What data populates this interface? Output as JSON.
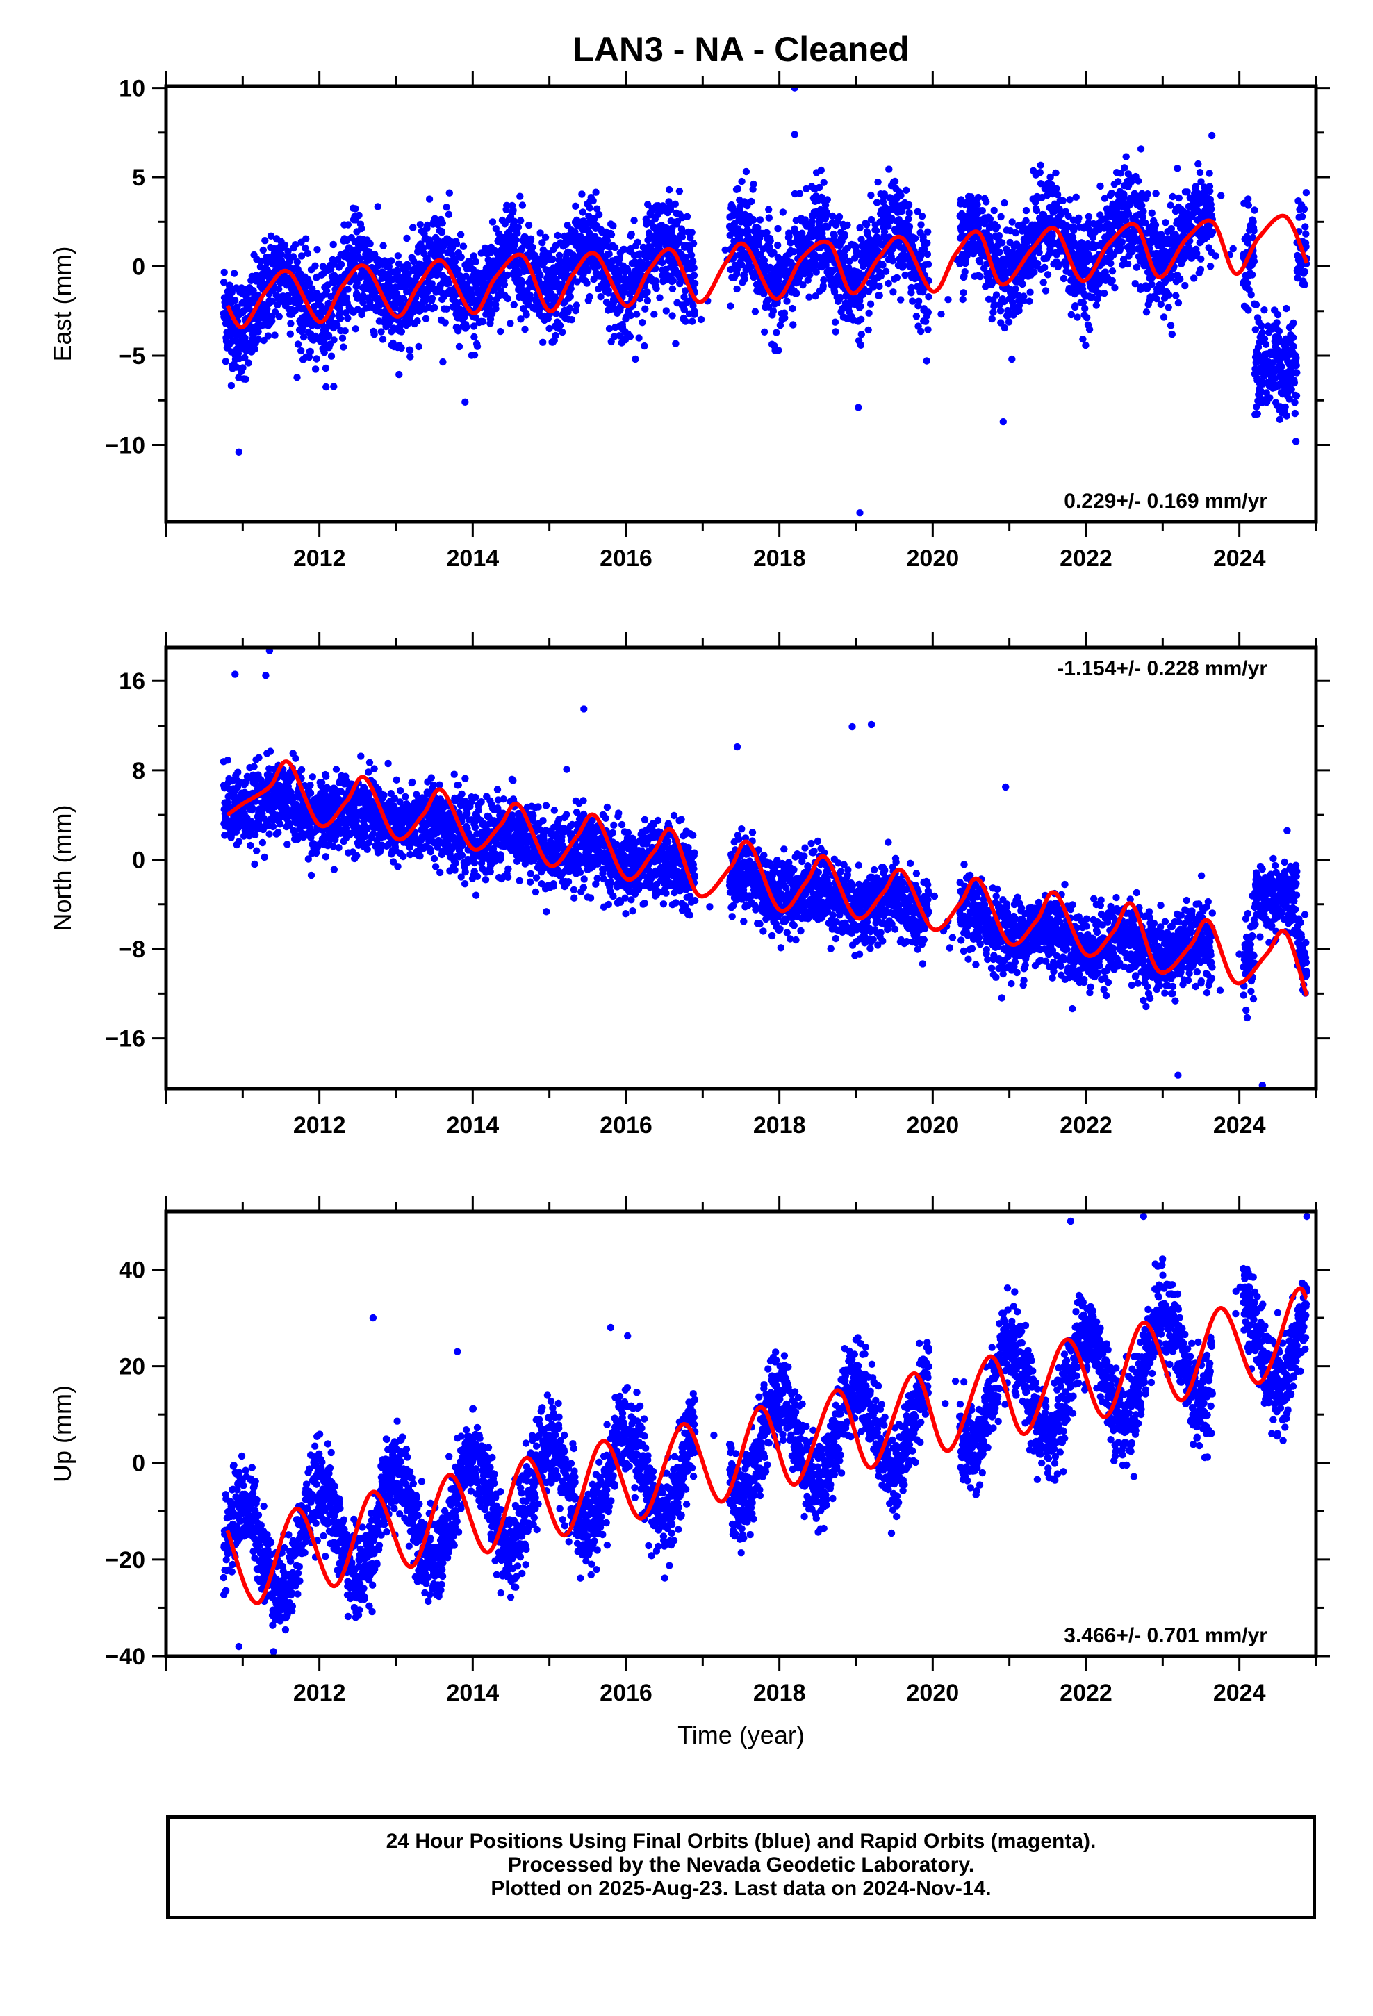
{
  "title": "LAN3  - NA - Cleaned",
  "footer": {
    "line1": "24 Hour Positions Using Final Orbits (blue) and Rapid Orbits (magenta).",
    "line2": "Processed by the Nevada Geodetic Laboratory.",
    "line3": "Plotted on 2025-Aug-23. Last data on 2024-Nov-14."
  },
  "colors": {
    "data_points": "#0000ff",
    "model_fit": "#ff0000",
    "frame": "#000000"
  },
  "chart_data": [
    {
      "type": "scatter",
      "ylabel": "East (mm)",
      "xlabel": "",
      "xlim": [
        2010.0,
        2025.0
      ],
      "ylim": [
        -14.3,
        10.1
      ],
      "xticks": [
        2012,
        2014,
        2016,
        2018,
        2020,
        2022,
        2024
      ],
      "yticks": [
        -10,
        -5,
        0,
        5,
        10
      ],
      "ytick_labels": [
        "−10",
        "−5",
        "0",
        "5",
        "10"
      ],
      "rate_label": "0.229+/- 0.169 mm/yr",
      "rate_position": "bottom-right",
      "data_range_x": [
        2010.75,
        2024.88
      ],
      "series": [
        {
          "role": "daily positions",
          "trend": [
            [
              2010.8,
              -2.2
            ],
            [
              2013.0,
              -1.0
            ],
            [
              2016.0,
              0.0
            ],
            [
              2018.0,
              0.3
            ],
            [
              2020.0,
              0.6
            ],
            [
              2022.0,
              1.2
            ],
            [
              2024.0,
              1.5
            ]
          ],
          "seasonal_amplitude": 1.4,
          "scatter": 1.4,
          "gaps": [
            [
              2016.9,
              2017.35
            ],
            [
              2019.95,
              2020.35
            ],
            [
              2023.65,
              2024.05
            ]
          ],
          "offset_segments": [
            {
              "x": [
                2024.2,
                2024.75
              ],
              "y": -5.5
            }
          ],
          "outliers": [
            [
              2018.2,
              10.0
            ],
            [
              2018.2,
              7.4
            ],
            [
              2019.05,
              -13.8
            ],
            [
              2010.95,
              -10.4
            ],
            [
              2020.92,
              -8.7
            ],
            [
              2013.9,
              -7.6
            ],
            [
              2019.03,
              -7.9
            ]
          ]
        },
        {
          "role": "model fit",
          "points": [
            [
              2010.8,
              -2.2
            ],
            [
              2011.0,
              -3.4
            ],
            [
              2011.3,
              -1.4
            ],
            [
              2011.6,
              -0.3
            ],
            [
              2012.0,
              -3.1
            ],
            [
              2012.3,
              -1.1
            ],
            [
              2012.6,
              0.0
            ],
            [
              2013.0,
              -2.8
            ],
            [
              2013.3,
              -1.0
            ],
            [
              2013.6,
              0.3
            ],
            [
              2014.0,
              -2.6
            ],
            [
              2014.3,
              -0.6
            ],
            [
              2014.65,
              0.6
            ],
            [
              2015.0,
              -2.5
            ],
            [
              2015.3,
              -0.5
            ],
            [
              2015.6,
              0.7
            ],
            [
              2016.0,
              -2.2
            ],
            [
              2016.3,
              -0.2
            ],
            [
              2016.6,
              0.9
            ],
            [
              2016.95,
              -2.0
            ],
            [
              2017.3,
              0.2
            ],
            [
              2017.55,
              1.2
            ],
            [
              2017.95,
              -1.8
            ],
            [
              2018.3,
              0.5
            ],
            [
              2018.65,
              1.3
            ],
            [
              2018.95,
              -1.5
            ],
            [
              2019.3,
              0.5
            ],
            [
              2019.6,
              1.6
            ],
            [
              2020.0,
              -1.4
            ],
            [
              2020.3,
              0.7
            ],
            [
              2020.6,
              1.9
            ],
            [
              2020.9,
              -1.0
            ],
            [
              2021.3,
              1.0
            ],
            [
              2021.6,
              2.1
            ],
            [
              2021.95,
              -0.8
            ],
            [
              2022.3,
              1.3
            ],
            [
              2022.65,
              2.3
            ],
            [
              2022.95,
              -0.6
            ],
            [
              2023.3,
              1.5
            ],
            [
              2023.65,
              2.5
            ],
            [
              2023.95,
              -0.4
            ],
            [
              2024.25,
              1.6
            ],
            [
              2024.6,
              2.8
            ],
            [
              2024.88,
              0.2
            ]
          ]
        }
      ]
    },
    {
      "type": "scatter",
      "ylabel": "North (mm)",
      "xlabel": "",
      "xlim": [
        2010.0,
        2025.0
      ],
      "ylim": [
        -20.5,
        19.0
      ],
      "xticks": [
        2012,
        2014,
        2016,
        2018,
        2020,
        2022,
        2024
      ],
      "yticks": [
        -16,
        -8,
        0,
        8,
        16
      ],
      "ytick_labels": [
        "−16",
        "−8",
        "0",
        "8",
        "16"
      ],
      "rate_label": "-1.154+/- 0.228 mm/yr",
      "rate_position": "top-right",
      "data_range_x": [
        2010.75,
        2024.88
      ],
      "series": [
        {
          "role": "daily positions",
          "trend": [
            [
              2010.8,
              5.5
            ],
            [
              2013.0,
              3.5
            ],
            [
              2016.0,
              0.0
            ],
            [
              2018.0,
              -2.5
            ],
            [
              2020.0,
              -5.0
            ],
            [
              2022.0,
              -7.5
            ],
            [
              2024.0,
              -8.5
            ]
          ],
          "seasonal_amplitude": 2.5,
          "scatter": 1.7,
          "gaps": [
            [
              2016.9,
              2017.35
            ],
            [
              2019.95,
              2020.35
            ],
            [
              2023.65,
              2024.05
            ]
          ],
          "offset_segments": [
            {
              "x": [
                2024.2,
                2024.75
              ],
              "y": -3.5
            }
          ],
          "outliers": [
            [
              2011.35,
              18.7
            ],
            [
              2010.9,
              16.6
            ],
            [
              2011.3,
              16.5
            ],
            [
              2015.45,
              13.5
            ],
            [
              2019.2,
              12.1
            ],
            [
              2018.95,
              11.9
            ],
            [
              2017.45,
              10.1
            ],
            [
              2023.2,
              -19.3
            ],
            [
              2024.3,
              -20.2
            ],
            [
              2020.95,
              6.5
            ]
          ]
        },
        {
          "role": "model fit",
          "points": [
            [
              2010.8,
              4.0
            ],
            [
              2011.0,
              5.0
            ],
            [
              2011.35,
              6.5
            ],
            [
              2011.6,
              8.7
            ],
            [
              2012.0,
              3.1
            ],
            [
              2012.35,
              5.2
            ],
            [
              2012.6,
              7.3
            ],
            [
              2013.0,
              1.9
            ],
            [
              2013.35,
              4.0
            ],
            [
              2013.6,
              6.2
            ],
            [
              2014.0,
              1.0
            ],
            [
              2014.35,
              3.0
            ],
            [
              2014.6,
              4.9
            ],
            [
              2015.0,
              -0.5
            ],
            [
              2015.35,
              2.0
            ],
            [
              2015.6,
              3.9
            ],
            [
              2016.0,
              -1.7
            ],
            [
              2016.35,
              0.6
            ],
            [
              2016.6,
              2.6
            ],
            [
              2016.95,
              -3.2
            ],
            [
              2017.35,
              -0.8
            ],
            [
              2017.6,
              1.5
            ],
            [
              2018.0,
              -4.5
            ],
            [
              2018.35,
              -2.0
            ],
            [
              2018.6,
              0.2
            ],
            [
              2019.0,
              -5.2
            ],
            [
              2019.35,
              -3.0
            ],
            [
              2019.6,
              -1.0
            ],
            [
              2020.0,
              -6.2
            ],
            [
              2020.35,
              -4.0
            ],
            [
              2020.6,
              -1.8
            ],
            [
              2021.0,
              -7.5
            ],
            [
              2021.35,
              -5.5
            ],
            [
              2021.6,
              -3.0
            ],
            [
              2022.0,
              -8.5
            ],
            [
              2022.35,
              -6.5
            ],
            [
              2022.6,
              -4.0
            ],
            [
              2022.95,
              -10.0
            ],
            [
              2023.35,
              -7.8
            ],
            [
              2023.6,
              -5.5
            ],
            [
              2023.95,
              -11.0
            ],
            [
              2024.35,
              -8.5
            ],
            [
              2024.6,
              -6.5
            ],
            [
              2024.88,
              -12.2
            ]
          ]
        }
      ]
    },
    {
      "type": "scatter",
      "ylabel": "Up (mm)",
      "xlabel": "Time (year)",
      "xlim": [
        2010.0,
        2025.0
      ],
      "ylim": [
        -40.0,
        52.0
      ],
      "xticks": [
        2012,
        2014,
        2016,
        2018,
        2020,
        2022,
        2024
      ],
      "yticks": [
        -40,
        -20,
        0,
        20,
        40
      ],
      "ytick_labels": [
        "−40",
        "−20",
        "0",
        "20",
        "40"
      ],
      "rate_label": "3.466+/- 0.701 mm/yr",
      "rate_position": "bottom-right",
      "data_range_x": [
        2010.75,
        2024.88
      ],
      "series": [
        {
          "role": "daily positions",
          "trend": [
            [
              2010.8,
              -19.0
            ],
            [
              2013.0,
              -12.0
            ],
            [
              2016.0,
              -3.0
            ],
            [
              2018.0,
              4.0
            ],
            [
              2020.0,
              10.0
            ],
            [
              2022.0,
              17.0
            ],
            [
              2024.0,
              25.0
            ]
          ],
          "seasonal_amplitude": 10.0,
          "scatter": 4.5,
          "gaps": [
            [
              2016.9,
              2017.35
            ],
            [
              2019.95,
              2020.35
            ],
            [
              2023.65,
              2024.05
            ]
          ],
          "offset_segments": [],
          "outliers": [
            [
              2012.7,
              30.0
            ],
            [
              2013.8,
              23.0
            ],
            [
              2015.8,
              28.0
            ],
            [
              2021.8,
              50.0
            ],
            [
              2022.75,
              51.0
            ],
            [
              2024.88,
              51.0
            ],
            [
              2010.95,
              -38.0
            ]
          ]
        },
        {
          "role": "model fit",
          "points": [
            [
              2010.8,
              -14.0
            ],
            [
              2011.2,
              -29.0
            ],
            [
              2011.7,
              -9.5
            ],
            [
              2012.2,
              -25.5
            ],
            [
              2012.7,
              -6.0
            ],
            [
              2013.2,
              -21.5
            ],
            [
              2013.7,
              -2.5
            ],
            [
              2014.2,
              -18.5
            ],
            [
              2014.7,
              1.0
            ],
            [
              2015.2,
              -15.0
            ],
            [
              2015.7,
              4.5
            ],
            [
              2016.2,
              -11.5
            ],
            [
              2016.75,
              8.0
            ],
            [
              2017.25,
              -8.0
            ],
            [
              2017.75,
              11.5
            ],
            [
              2018.2,
              -4.5
            ],
            [
              2018.75,
              15.0
            ],
            [
              2019.2,
              -1.0
            ],
            [
              2019.75,
              18.5
            ],
            [
              2020.2,
              2.5
            ],
            [
              2020.75,
              22.0
            ],
            [
              2021.2,
              6.0
            ],
            [
              2021.75,
              25.5
            ],
            [
              2022.25,
              9.5
            ],
            [
              2022.75,
              29.0
            ],
            [
              2023.25,
              13.0
            ],
            [
              2023.75,
              32.0
            ],
            [
              2024.25,
              16.5
            ],
            [
              2024.72,
              35.0
            ],
            [
              2024.88,
              34.0
            ]
          ]
        }
      ]
    }
  ]
}
